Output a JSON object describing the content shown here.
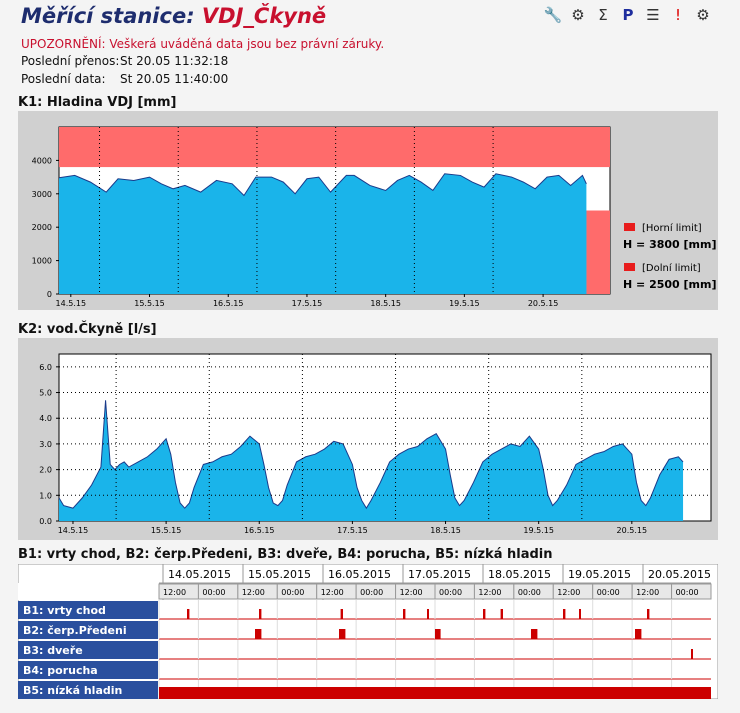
{
  "header": {
    "title_prefix": "Měřící stanice:",
    "station": "VDJ_Čkyně",
    "warning": "UPOZORNĚNÍ: Veškerá uváděná data jsou bez právní záruky.",
    "last_transfer_label": "Poslední přenos:",
    "last_transfer_value": "St 20.05 11:32:18",
    "last_data_label": "Poslední data:",
    "last_data_value": "St 20.05 11:40:00"
  },
  "toolbar": [
    "tools-icon",
    "settings-icon",
    "sigma-icon",
    "report-icon",
    "list-icon",
    "alarm-icon",
    "gears-icon"
  ],
  "k1": {
    "title": "K1: Hladina VDJ [mm]",
    "legend": [
      {
        "label": "[Horní limit]",
        "value": "H = 3800 [mm]",
        "color": "#e81c1c"
      },
      {
        "label": "[Dolní limit]",
        "value": "H = 2500 [mm]",
        "color": "#e81c1c"
      }
    ]
  },
  "k2": {
    "title": "K2: vod.Čkyně [l/s]"
  },
  "chart_data": [
    {
      "type": "area",
      "title": "K1: Hladina VDJ [mm]",
      "x_ticks": [
        "14.5.15",
        "15.5.15",
        "16.5.15",
        "17.5.15",
        "18.5.15",
        "19.5.15",
        "20.5.15"
      ],
      "y_ticks": [
        "0",
        "1000",
        "2000",
        "3000",
        "4000"
      ],
      "ylim": [
        0,
        5000
      ],
      "xlim": [
        13.85,
        20.85
      ],
      "limits": {
        "upper": 3800,
        "lower": 2500
      },
      "colors": {
        "fill": "#1ab4ea",
        "line": "#1a3a8a",
        "limit_zone": "#ff6b6b"
      },
      "series": [
        {
          "x": [
            13.85,
            14.05,
            14.25,
            14.45,
            14.6,
            14.8,
            15.0,
            15.15,
            15.3,
            15.45,
            15.65,
            15.85,
            16.05,
            16.2,
            16.35,
            16.55,
            16.7,
            16.85,
            17.0,
            17.15,
            17.3,
            17.5,
            17.6,
            17.8,
            18.0,
            18.15,
            18.3,
            18.45,
            18.6,
            18.75,
            18.95,
            19.1,
            19.25,
            19.4,
            19.6,
            19.75,
            19.9,
            20.05,
            20.2,
            20.35,
            20.5,
            20.55
          ],
          "values": [
            3480,
            3550,
            3350,
            3050,
            3450,
            3400,
            3500,
            3300,
            3150,
            3250,
            3050,
            3400,
            3300,
            2950,
            3500,
            3500,
            3350,
            3000,
            3450,
            3500,
            3050,
            3550,
            3550,
            3250,
            3100,
            3400,
            3550,
            3350,
            3100,
            3600,
            3550,
            3350,
            3200,
            3600,
            3500,
            3350,
            3150,
            3500,
            3550,
            3250,
            3550,
            3300
          ]
        }
      ]
    },
    {
      "type": "area",
      "title": "K2: vod.Čkyně [l/s]",
      "x_ticks": [
        "14.5.15",
        "15.5.15",
        "16.5.15",
        "17.5.15",
        "18.5.15",
        "19.5.15",
        "20.5.15"
      ],
      "y_ticks": [
        "0.0",
        "1.0",
        "2.0",
        "3.0",
        "4.0",
        "5.0",
        "6.0"
      ],
      "ylim": [
        0,
        6.5
      ],
      "xlim": [
        13.85,
        20.85
      ],
      "colors": {
        "fill": "#1ab4ea",
        "line": "#1a3a8a"
      },
      "series": [
        {
          "x": [
            13.85,
            13.9,
            14.0,
            14.1,
            14.2,
            14.3,
            14.35,
            14.4,
            14.45,
            14.5,
            14.55,
            14.6,
            14.7,
            14.8,
            14.9,
            15.0,
            15.05,
            15.1,
            15.15,
            15.2,
            15.25,
            15.3,
            15.4,
            15.5,
            15.6,
            15.7,
            15.8,
            15.9,
            16.0,
            16.05,
            16.1,
            16.15,
            16.2,
            16.25,
            16.3,
            16.4,
            16.5,
            16.6,
            16.7,
            16.8,
            16.9,
            17.0,
            17.05,
            17.1,
            17.15,
            17.2,
            17.3,
            17.4,
            17.5,
            17.6,
            17.7,
            17.8,
            17.9,
            18.0,
            18.05,
            18.1,
            18.15,
            18.2,
            18.3,
            18.4,
            18.5,
            18.6,
            18.7,
            18.8,
            18.9,
            19.0,
            19.05,
            19.1,
            19.15,
            19.2,
            19.3,
            19.4,
            19.5,
            19.6,
            19.7,
            19.8,
            19.9,
            20.0,
            20.05,
            20.1,
            20.15,
            20.2,
            20.3,
            20.4,
            20.5,
            20.55
          ],
          "values": [
            0.9,
            0.6,
            0.5,
            0.9,
            1.4,
            2.1,
            4.7,
            2.2,
            2.0,
            2.2,
            2.3,
            2.1,
            2.3,
            2.5,
            2.8,
            3.2,
            2.6,
            1.5,
            0.7,
            0.5,
            0.7,
            1.3,
            2.2,
            2.3,
            2.5,
            2.6,
            2.9,
            3.3,
            3.0,
            2.2,
            1.3,
            0.7,
            0.6,
            0.8,
            1.4,
            2.3,
            2.5,
            2.6,
            2.8,
            3.1,
            3.0,
            2.2,
            1.3,
            0.8,
            0.5,
            0.8,
            1.5,
            2.3,
            2.6,
            2.8,
            2.9,
            3.2,
            3.4,
            2.8,
            1.8,
            0.9,
            0.6,
            0.8,
            1.5,
            2.3,
            2.6,
            2.8,
            3.0,
            2.9,
            3.3,
            2.8,
            2.0,
            1.0,
            0.6,
            0.8,
            1.4,
            2.2,
            2.4,
            2.6,
            2.7,
            2.9,
            3.0,
            2.6,
            1.5,
            0.8,
            0.6,
            0.9,
            1.8,
            2.4,
            2.5,
            2.3
          ]
        }
      ]
    },
    {
      "type": "table",
      "title": "B1: vrty chod, B2: čerp.Předeni, B3: dveře, B4: porucha, B5: nízká hladin",
      "days": [
        "14.05.2015",
        "15.05.2015",
        "16.05.2015",
        "17.05.2015",
        "18.05.2015",
        "19.05.2015",
        "20.05.2015"
      ],
      "hours": [
        "12:00",
        "00:00",
        "12:00",
        "00:00",
        "12:00",
        "00:00",
        "12:00",
        "00:00",
        "12:00",
        "00:00",
        "12:00",
        "00:00",
        "12:00",
        "00:00"
      ],
      "channels": [
        {
          "name": "B1: vrty chod",
          "events": [
            [
              14.3,
              14.33
            ],
            [
              15.2,
              15.23
            ],
            [
              16.22,
              16.25
            ],
            [
              17.0,
              17.03
            ],
            [
              17.3,
              17.32
            ],
            [
              18.0,
              18.03
            ],
            [
              18.22,
              18.25
            ],
            [
              19.0,
              19.03
            ],
            [
              19.2,
              19.22
            ],
            [
              20.05,
              20.08
            ]
          ]
        },
        {
          "name": "B2: čerp.Předeni",
          "events": [
            [
              15.15,
              15.23
            ],
            [
              16.2,
              16.28
            ],
            [
              17.4,
              17.47
            ],
            [
              18.6,
              18.68
            ],
            [
              19.9,
              19.98
            ]
          ]
        },
        {
          "name": "B3: dveře",
          "events": [
            [
              20.6,
              20.62
            ]
          ]
        },
        {
          "name": "B4: porucha",
          "events": []
        },
        {
          "name": "B5: nízká hladin",
          "events": [
            [
              13.95,
              20.85
            ]
          ]
        }
      ],
      "colors": {
        "event": "#cc0000",
        "label_bg": "#2a4f9e"
      }
    }
  ]
}
